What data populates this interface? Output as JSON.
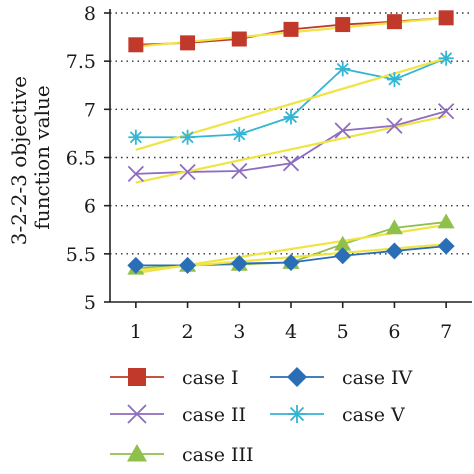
{
  "chart_data": {
    "type": "line",
    "ylabel_lines": [
      "3-2-2-3 objective",
      "function value"
    ],
    "x": [
      1,
      2,
      3,
      4,
      5,
      6,
      7
    ],
    "xlim": [
      0.5,
      7.5
    ],
    "ylim": [
      5,
      8
    ],
    "yticks": [
      "5",
      "5.5",
      "6",
      "6.5",
      "7",
      "7.5",
      "8"
    ],
    "xticks": [
      "1",
      "2",
      "3",
      "4",
      "5",
      "6",
      "7"
    ],
    "grid": "horizontal dotted",
    "legend_position": "bottom",
    "trend_color": "#f0e442",
    "series": [
      {
        "name": "case I",
        "color": "#c0392b",
        "marker": "square",
        "values": [
          7.67,
          7.69,
          7.73,
          7.83,
          7.88,
          7.91,
          7.95
        ],
        "trend": [
          7.65,
          7.95
        ]
      },
      {
        "name": "case II",
        "color": "#8e6cbf",
        "marker": "x",
        "values": [
          6.33,
          6.35,
          6.36,
          6.44,
          6.78,
          6.83,
          6.98
        ],
        "trend": [
          6.24,
          6.93
        ]
      },
      {
        "name": "case III",
        "color": "#8fc04a",
        "marker": "triangle",
        "values": [
          5.35,
          5.38,
          5.39,
          5.41,
          5.6,
          5.77,
          5.83
        ],
        "trend": [
          5.3,
          5.8
        ]
      },
      {
        "name": "case IV",
        "color": "#2a6eb5",
        "marker": "diamond",
        "values": [
          5.38,
          5.38,
          5.4,
          5.41,
          5.48,
          5.53,
          5.58
        ],
        "trend": [
          5.33,
          5.6
        ]
      },
      {
        "name": "case V",
        "color": "#33b5d4",
        "marker": "asterisk",
        "values": [
          6.71,
          6.71,
          6.74,
          6.92,
          7.42,
          7.31,
          7.53
        ],
        "trend": [
          6.58,
          7.53
        ]
      }
    ],
    "legend_order": [
      "case I",
      "case IV",
      "case II",
      "case V",
      "case III"
    ]
  }
}
